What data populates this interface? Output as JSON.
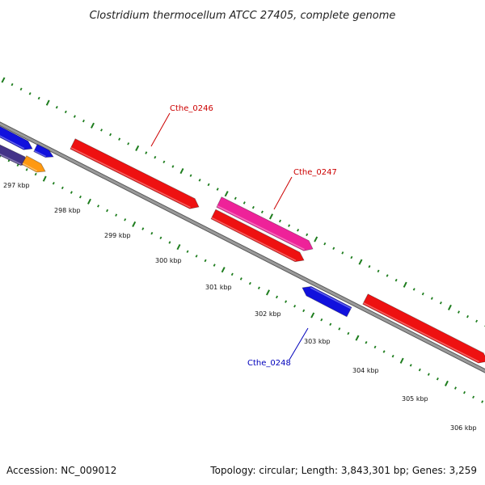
{
  "title": "Clostridium thermocellum ATCC 27405, complete genome",
  "footer": {
    "accession": "Accession: NC_009012",
    "summary": "Topology: circular; Length: 3,843,301 bp; Genes: 3,259"
  },
  "colors": {
    "backbone": "#8a8a8a",
    "backbone_edge": "#5a5a5a",
    "ticks": "#1e7d1e",
    "red_gene": "#ee1111",
    "pink_gene": "#ee2299",
    "blue_gene": "#1111dd",
    "navy_gene": "#443388",
    "orange_gene": "#ff9911",
    "forward_label": "#cc0000",
    "reverse_label": "#0000bb"
  },
  "kbp_labels": [
    "297 kbp",
    "298 kbp",
    "299 kbp",
    "300 kbp",
    "301 kbp",
    "302 kbp",
    "303 kbp",
    "304 kbp",
    "305 kbp",
    "306 kbp"
  ],
  "gene_labels": [
    {
      "id": "Cthe_0246",
      "text": "Cthe_0246",
      "strand": "forward"
    },
    {
      "id": "Cthe_0247",
      "text": "Cthe_0247",
      "strand": "forward"
    },
    {
      "id": "Cthe_0248",
      "text": "Cthe_0248",
      "strand": "reverse"
    }
  ]
}
